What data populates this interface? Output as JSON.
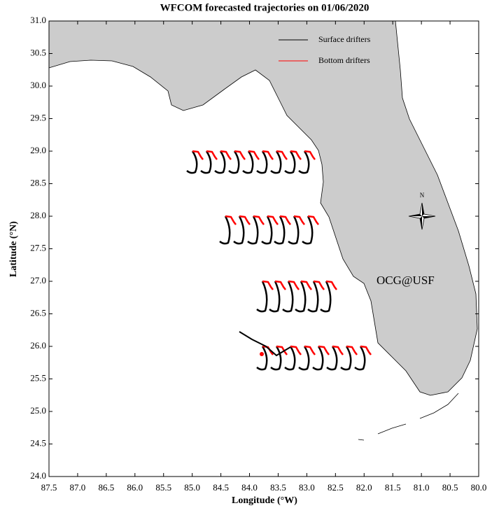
{
  "chart_data": {
    "type": "map",
    "title": "WFCOM forecasted trajectories on 01/06/2020",
    "x_label": "Longitude (°W)",
    "y_label": "Latitude (°N)",
    "xlim": [
      87.5,
      80.0
    ],
    "ylim": [
      24.0,
      31.0
    ],
    "xticks": [
      87.5,
      {
        "value": 87,
        "label": "87.0"
      },
      86.5,
      {
        "value": 86,
        "label": "86.0"
      },
      85.5,
      {
        "value": 85,
        "label": "85.0"
      },
      84.5,
      {
        "value": 84,
        "label": "84.0"
      },
      83.5,
      {
        "value": 83,
        "label": "83.0"
      },
      82.5,
      {
        "value": 82,
        "label": "82.0"
      },
      81.5,
      {
        "value": 81,
        "label": "81.0"
      },
      80.5,
      {
        "value": 80,
        "label": "80.0"
      }
    ],
    "yticks": [
      {
        "value": 24,
        "label": "24.0"
      },
      24.5,
      {
        "value": 25,
        "label": "25.0"
      },
      25.5,
      {
        "value": 26,
        "label": "26.0"
      },
      26.5,
      {
        "value": 27,
        "label": "27.0"
      },
      27.5,
      {
        "value": 28,
        "label": "28.0"
      },
      28.5,
      {
        "value": 29,
        "label": "29.0"
      },
      29.5,
      {
        "value": 30,
        "label": "30.0"
      },
      30.5,
      {
        "value": 31,
        "label": "31.0"
      }
    ],
    "series": [
      {
        "name": "Surface drifters",
        "color": "#000000"
      },
      {
        "name": "Bottom drifters",
        "color": "#ff0000"
      }
    ],
    "annotation": "OCG@USF",
    "compass_label": "N"
  }
}
